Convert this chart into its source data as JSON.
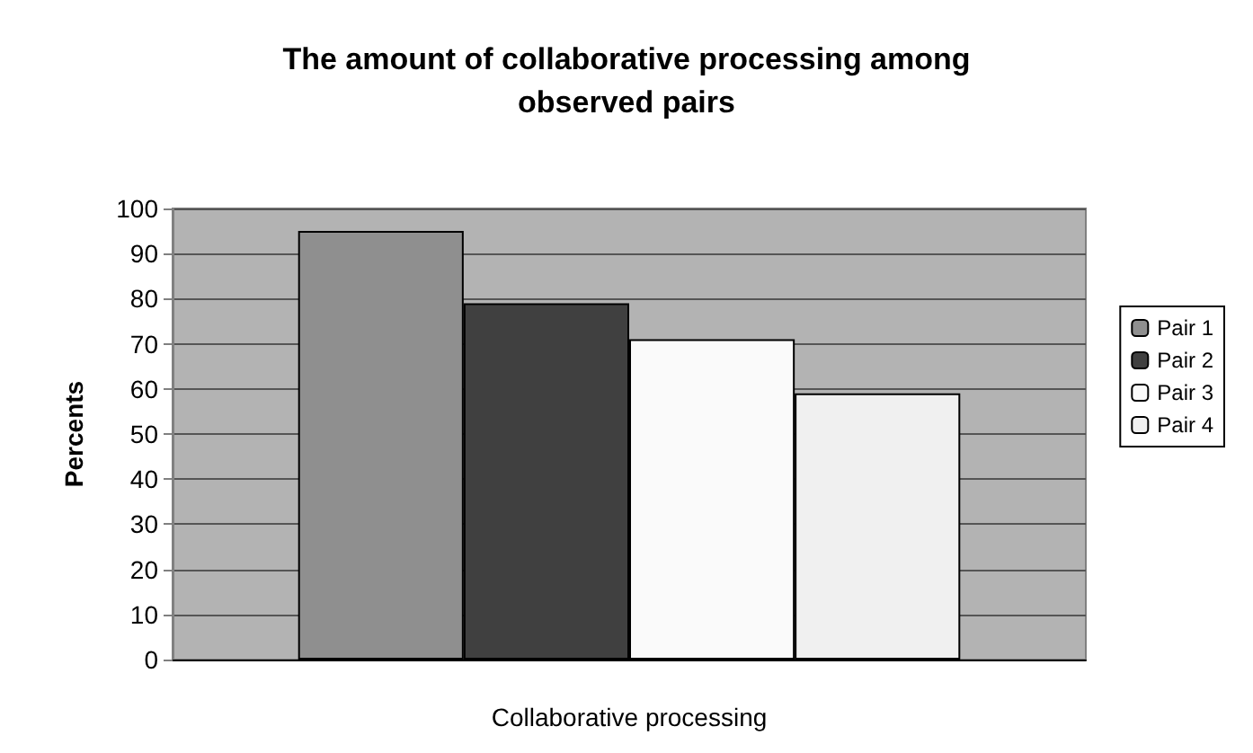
{
  "chart_data": {
    "type": "bar",
    "title": "The amount of collaborative processing among\nobserved pairs",
    "xlabel": "Collaborative processing",
    "ylabel": "Percents",
    "categories": [
      null
    ],
    "series": [
      {
        "name": "Pair 1",
        "color": "#8f8f8f",
        "values": [
          95
        ]
      },
      {
        "name": "Pair 2",
        "color": "#404040",
        "values": [
          79
        ]
      },
      {
        "name": "Pair 3",
        "color": "#fafafa",
        "values": [
          71
        ]
      },
      {
        "name": "Pair 4",
        "color": "#f0f0f0",
        "values": [
          59
        ]
      }
    ],
    "ylim": [
      0,
      100
    ],
    "yticks": [
      0,
      10,
      20,
      30,
      40,
      50,
      60,
      70,
      80,
      90,
      100
    ],
    "grid": "y",
    "legend": "right"
  }
}
